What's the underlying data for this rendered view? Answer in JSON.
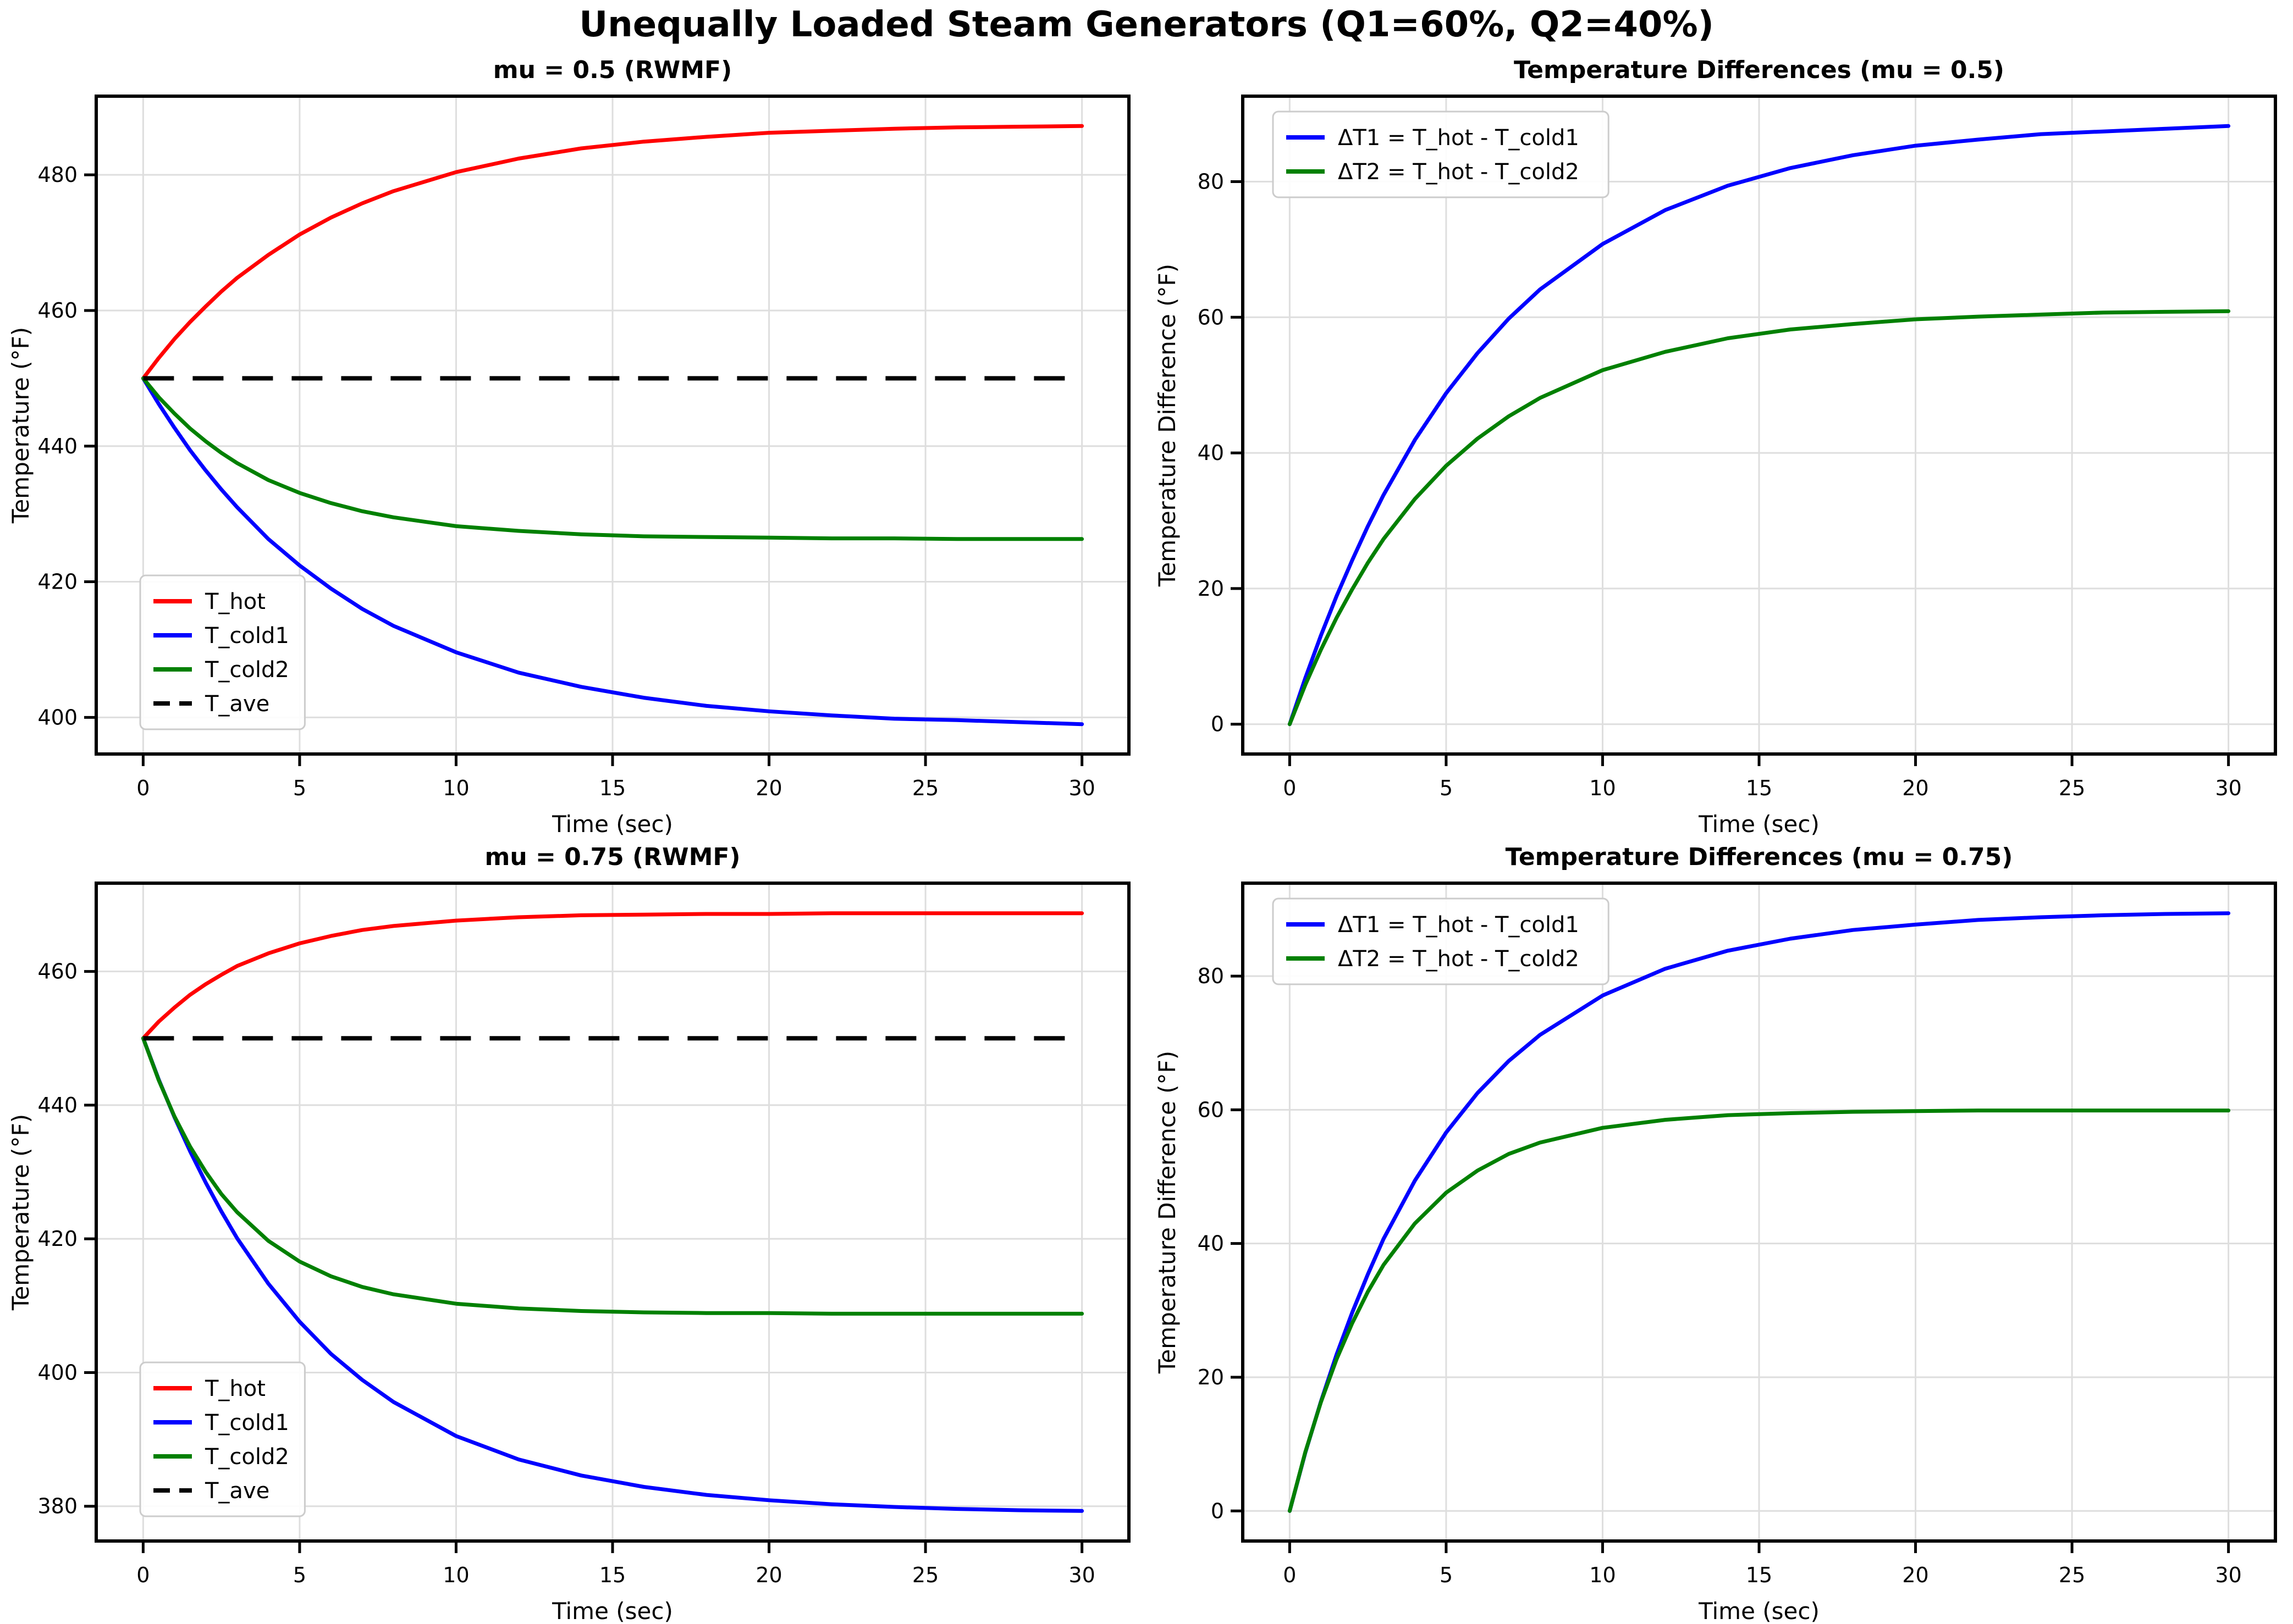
{
  "title": "Unequally Loaded Steam Generators (Q1=60%, Q2=40%)",
  "colors": {
    "hot": "#ff0000",
    "cold1": "#0000ff",
    "cold2": "#008000",
    "ave": "#000000",
    "grid": "#dedede",
    "spine": "#000000",
    "legend_border": "#cccccc",
    "legend_bg": "#ffffff",
    "background": "#ffffff"
  },
  "chart_data": [
    {
      "name": "temps-mu-0.5",
      "type": "line",
      "title": "mu = 0.5 (RWMF)",
      "xlabel": "Time (sec)",
      "ylabel": "Temperature (°F)",
      "xlim": [
        -1.5,
        31.5
      ],
      "ylim": [
        394.6,
        491.6
      ],
      "xticks": [
        0,
        5,
        10,
        15,
        20,
        25,
        30
      ],
      "yticks": [
        400,
        420,
        440,
        460,
        480
      ],
      "grid": true,
      "legend_position": "lower-left",
      "x": [
        0,
        0.5,
        1,
        1.5,
        2,
        2.5,
        3,
        4,
        5,
        6,
        7,
        8,
        10,
        12,
        14,
        16,
        18,
        20,
        22,
        24,
        26,
        28,
        30
      ],
      "series": [
        {
          "name": "T_hot",
          "label": "T_hot",
          "color": "#ff0000",
          "dash": "solid",
          "values": [
            450,
            453.0,
            455.8,
            458.3,
            460.6,
            462.8,
            464.8,
            468.2,
            471.2,
            473.7,
            475.8,
            477.6,
            480.4,
            482.4,
            483.9,
            484.9,
            485.6,
            486.2,
            486.5,
            486.8,
            487.0,
            487.1,
            487.2
          ]
        },
        {
          "name": "T_cold1",
          "label": "T_cold1",
          "color": "#0000ff",
          "dash": "solid",
          "values": [
            450,
            446.2,
            442.7,
            439.4,
            436.4,
            433.6,
            431.0,
            426.3,
            422.4,
            419.0,
            416.0,
            413.5,
            409.6,
            406.6,
            404.5,
            402.9,
            401.7,
            400.9,
            400.3,
            399.8,
            399.6,
            399.3,
            399.0
          ]
        },
        {
          "name": "T_cold2",
          "label": "T_cold2",
          "color": "#008000",
          "dash": "solid",
          "values": [
            450,
            447.2,
            444.8,
            442.6,
            440.7,
            439.0,
            437.5,
            435.0,
            433.1,
            431.6,
            430.4,
            429.5,
            428.2,
            427.5,
            427.0,
            426.7,
            426.6,
            426.5,
            426.4,
            426.4,
            426.3,
            426.3,
            426.3
          ]
        },
        {
          "name": "T_ave",
          "label": "T_ave",
          "color": "#000000",
          "dash": "dashed",
          "values": [
            450,
            450,
            450,
            450,
            450,
            450,
            450,
            450,
            450,
            450,
            450,
            450,
            450,
            450,
            450,
            450,
            450,
            450,
            450,
            450,
            450,
            450,
            450
          ]
        }
      ]
    },
    {
      "name": "diffs-mu-0.5",
      "type": "line",
      "title": "Temperature Differences (mu = 0.5)",
      "xlabel": "Time (sec)",
      "ylabel": "Temperature Difference (°F)",
      "xlim": [
        -1.5,
        31.5
      ],
      "ylim": [
        -4.4,
        92.6
      ],
      "xticks": [
        0,
        5,
        10,
        15,
        20,
        25,
        30
      ],
      "yticks": [
        0,
        20,
        40,
        60,
        80
      ],
      "grid": true,
      "legend_position": "upper-left",
      "x": [
        0,
        0.5,
        1,
        1.5,
        2,
        2.5,
        3,
        4,
        5,
        6,
        7,
        8,
        10,
        12,
        14,
        16,
        18,
        20,
        22,
        24,
        26,
        28,
        30
      ],
      "series": [
        {
          "name": "dT1",
          "label": "ΔT1 = T_hot - T_cold1",
          "color": "#0000ff",
          "dash": "solid",
          "values": [
            0,
            6.8,
            13.1,
            18.9,
            24.2,
            29.2,
            33.8,
            41.9,
            48.8,
            54.7,
            59.8,
            64.1,
            70.8,
            75.8,
            79.4,
            82.0,
            83.9,
            85.3,
            86.2,
            87.0,
            87.4,
            87.8,
            88.2
          ]
        },
        {
          "name": "dT2",
          "label": "ΔT2 = T_hot - T_cold2",
          "color": "#008000",
          "dash": "solid",
          "values": [
            0,
            5.8,
            11.0,
            15.7,
            19.9,
            23.8,
            27.3,
            33.2,
            38.1,
            42.1,
            45.4,
            48.1,
            52.2,
            54.9,
            56.9,
            58.2,
            59.0,
            59.7,
            60.1,
            60.4,
            60.7,
            60.8,
            60.9
          ]
        }
      ]
    },
    {
      "name": "temps-mu-0.75",
      "type": "line",
      "title": "mu = 0.75 (RWMF)",
      "xlabel": "Time (sec)",
      "ylabel": "Temperature (°F)",
      "xlim": [
        -1.5,
        31.5
      ],
      "ylim": [
        374.8,
        473.2
      ],
      "xticks": [
        0,
        5,
        10,
        15,
        20,
        25,
        30
      ],
      "yticks": [
        380,
        400,
        420,
        440,
        460
      ],
      "grid": true,
      "legend_position": "lower-left",
      "x": [
        0,
        0.5,
        1,
        1.5,
        2,
        2.5,
        3,
        4,
        5,
        6,
        7,
        8,
        10,
        12,
        14,
        16,
        18,
        20,
        22,
        24,
        26,
        28,
        30
      ],
      "series": [
        {
          "name": "T_hot",
          "label": "T_hot",
          "color": "#ff0000",
          "dash": "solid",
          "values": [
            450,
            452.5,
            454.6,
            456.5,
            458.1,
            459.5,
            460.8,
            462.7,
            464.2,
            465.3,
            466.2,
            466.8,
            467.6,
            468.1,
            468.4,
            468.5,
            468.6,
            468.6,
            468.7,
            468.7,
            468.7,
            468.7,
            468.7
          ]
        },
        {
          "name": "T_cold1",
          "label": "T_cold1",
          "color": "#0000ff",
          "dash": "solid",
          "values": [
            450,
            443.8,
            438.2,
            433.1,
            428.4,
            424.1,
            420.1,
            413.3,
            407.6,
            402.8,
            398.9,
            395.6,
            390.5,
            387.0,
            384.6,
            382.9,
            381.7,
            380.9,
            380.3,
            379.9,
            379.6,
            379.4,
            379.3
          ]
        },
        {
          "name": "T_cold2",
          "label": "T_cold2",
          "color": "#008000",
          "dash": "solid",
          "values": [
            450,
            443.7,
            438.3,
            433.8,
            430.0,
            426.7,
            424.0,
            419.7,
            416.6,
            414.4,
            412.8,
            411.7,
            410.3,
            409.6,
            409.2,
            409.0,
            408.9,
            408.9,
            408.8,
            408.8,
            408.8,
            408.8,
            408.8
          ]
        },
        {
          "name": "T_ave",
          "label": "T_ave",
          "color": "#000000",
          "dash": "dashed",
          "values": [
            450,
            450,
            450,
            450,
            450,
            450,
            450,
            450,
            450,
            450,
            450,
            450,
            450,
            450,
            450,
            450,
            450,
            450,
            450,
            450,
            450,
            450,
            450
          ]
        }
      ]
    },
    {
      "name": "diffs-mu-0.75",
      "type": "line",
      "title": "Temperature Differences (mu = 0.75)",
      "xlabel": "Time (sec)",
      "ylabel": "Temperature Difference (°F)",
      "xlim": [
        -1.5,
        31.5
      ],
      "ylim": [
        -4.5,
        93.9
      ],
      "xticks": [
        0,
        5,
        10,
        15,
        20,
        25,
        30
      ],
      "yticks": [
        0,
        20,
        40,
        60,
        80
      ],
      "grid": true,
      "legend_position": "upper-left",
      "x": [
        0,
        0.5,
        1,
        1.5,
        2,
        2.5,
        3,
        4,
        5,
        6,
        7,
        8,
        10,
        12,
        14,
        16,
        18,
        20,
        22,
        24,
        26,
        28,
        30
      ],
      "series": [
        {
          "name": "dT1",
          "label": "ΔT1 = T_hot - T_cold1",
          "color": "#0000ff",
          "dash": "solid",
          "values": [
            0,
            8.7,
            16.4,
            23.4,
            29.7,
            35.4,
            40.7,
            49.4,
            56.6,
            62.5,
            67.3,
            71.2,
            77.1,
            81.1,
            83.8,
            85.6,
            86.9,
            87.7,
            88.4,
            88.8,
            89.1,
            89.3,
            89.4
          ]
        },
        {
          "name": "dT2",
          "label": "ΔT2 = T_hot - T_cold2",
          "color": "#008000",
          "dash": "solid",
          "values": [
            0,
            8.8,
            16.3,
            22.7,
            28.1,
            32.8,
            36.8,
            43.0,
            47.6,
            50.9,
            53.4,
            55.1,
            57.3,
            58.5,
            59.2,
            59.5,
            59.7,
            59.8,
            59.9,
            59.9,
            59.9,
            59.9,
            59.9
          ]
        }
      ]
    }
  ]
}
